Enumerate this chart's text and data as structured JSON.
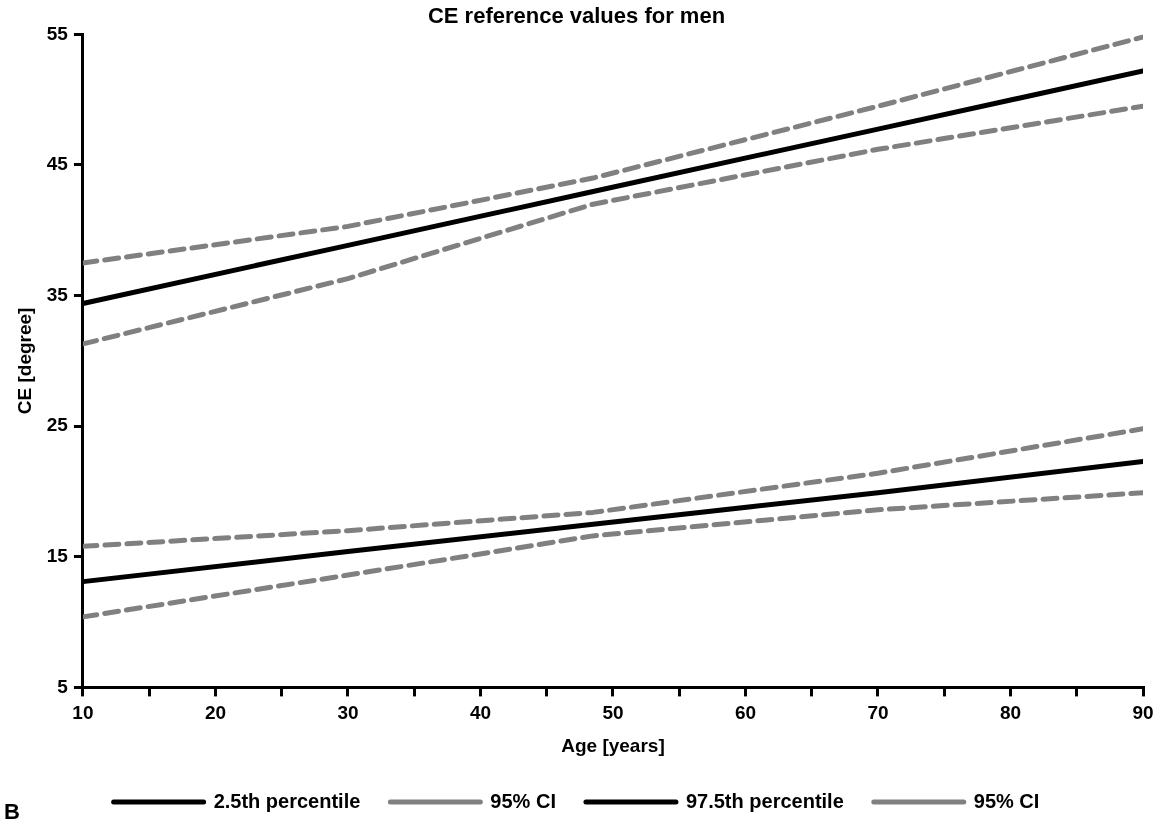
{
  "chart_data": {
    "type": "line",
    "title": "CE reference values for men",
    "xlabel": "Age [years]",
    "ylabel": "CE [degree]",
    "x": [
      10,
      30,
      48.5,
      70,
      90
    ],
    "series": [
      {
        "name": "2.5th percentile",
        "color": "#000000",
        "line_style": "solid",
        "values": [
          13.1,
          15.4,
          17.5,
          19.9,
          22.3
        ]
      },
      {
        "name": "95% CI",
        "color": "#808080",
        "line_style": "dashed",
        "values": [
          15.8,
          17.0,
          18.4,
          21.4,
          24.8
        ]
      },
      {
        "color": "#808080",
        "line_style": "dashed",
        "values": [
          10.4,
          13.6,
          16.6,
          18.6,
          19.9
        ]
      },
      {
        "name": "97.5th percentile",
        "color": "#000000",
        "line_style": "solid",
        "values": [
          34.4,
          38.85,
          42.97,
          47.75,
          52.2
        ]
      },
      {
        "name": "95% CI",
        "color": "#808080",
        "line_style": "dashed",
        "values": [
          37.5,
          40.3,
          44.0,
          49.5,
          54.8
        ]
      },
      {
        "color": "#808080",
        "line_style": "dashed",
        "values": [
          31.3,
          36.3,
          42.0,
          46.2,
          49.5
        ]
      }
    ],
    "xlim": [
      10,
      90
    ],
    "ylim": [
      5,
      55
    ],
    "xticks": [
      10,
      {
        "value": 15,
        "label": null
      },
      20,
      {
        "value": 25,
        "label": null
      },
      30,
      {
        "value": 35,
        "label": null
      },
      40,
      {
        "value": 45,
        "label": null
      },
      50,
      {
        "value": 55,
        "label": null
      },
      60,
      {
        "value": 65,
        "label": null
      },
      70,
      {
        "value": 75,
        "label": null
      },
      80,
      {
        "value": 85,
        "label": null
      },
      90
    ],
    "yticks": [
      5,
      15,
      25,
      35,
      45,
      55
    ],
    "grid": false,
    "legend": "bottom",
    "marker": "none",
    "annotations": [
      "B"
    ]
  }
}
